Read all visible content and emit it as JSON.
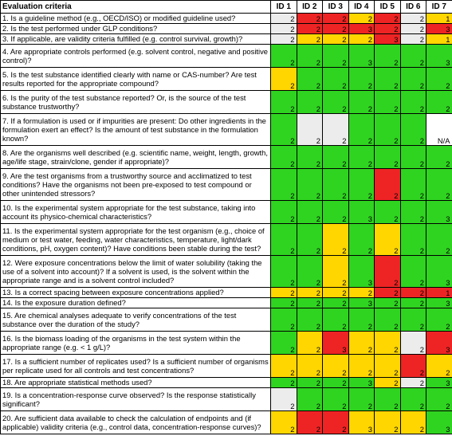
{
  "header": {
    "criteria": "Evaluation criteria",
    "ids": [
      "ID 1",
      "ID 2",
      "ID 3",
      "ID 4",
      "ID 5",
      "ID 6",
      "ID 7"
    ]
  },
  "colors": {
    "green": "#2fd420",
    "yellow": "#ffd600",
    "red": "#ee2424",
    "grey": "#ececec"
  },
  "rows": [
    {
      "text": "1. Is a guideline method (e.g., OECD/ISO) or modified guideline used?",
      "h": 13,
      "scores": [
        "2",
        "2",
        "2",
        "2",
        "2",
        "2",
        "1"
      ],
      "colors": [
        "n",
        "r",
        "r",
        "y",
        "r",
        "n",
        "y"
      ]
    },
    {
      "text": "2. Is the test performed under GLP conditions?",
      "h": 13,
      "scores": [
        "2",
        "2",
        "2",
        "3",
        "2",
        "2",
        "3"
      ],
      "colors": [
        "n",
        "r",
        "r",
        "r",
        "r",
        "n",
        "r"
      ]
    },
    {
      "text": "3. If applicable, are validity criteria fulfilled (e.g. control survival, growth)?",
      "h": 13,
      "scores": [
        "2",
        "2",
        "2",
        "2",
        "3",
        "2",
        "1"
      ],
      "colors": [
        "n",
        "y",
        "y",
        "y",
        "r",
        "n",
        "y"
      ]
    },
    {
      "text": "4. Are appropriate controls performed (e.g. solvent control, negative and positive control)?",
      "h": 29,
      "scores": [
        "2",
        "2",
        "2",
        "3",
        "2",
        "2",
        "3"
      ],
      "colors": [
        "g",
        "g",
        "g",
        "g",
        "g",
        "g",
        "g"
      ]
    },
    {
      "text": "5. Is the test substance identified clearly with name or CAS-number? Are test results reported for the appropriate compound?",
      "h": 29,
      "scores": [
        "2",
        "2",
        "2",
        "2",
        "2",
        "2",
        "2"
      ],
      "colors": [
        "y",
        "g",
        "g",
        "g",
        "g",
        "g",
        "g"
      ]
    },
    {
      "text": "6. Is the purity of the test substance reported? Or, is the source of the test substance trustworthy?",
      "h": 29,
      "scores": [
        "2",
        "2",
        "2",
        "2",
        "2",
        "2",
        "2"
      ],
      "colors": [
        "g",
        "g",
        "g",
        "g",
        "g",
        "g",
        "g"
      ]
    },
    {
      "text": "7. If a formulation is used or if impurities are present: Do other ingredients in the formulation exert an effect? Is the amount of test substance in the formulation known?",
      "h": 40,
      "scores": [
        "2",
        "2",
        "2",
        "2",
        "2",
        "2",
        "N/A"
      ],
      "colors": [
        "g",
        "n",
        "n",
        "g",
        "g",
        "g",
        "w"
      ]
    },
    {
      "text": "8. Are the organisms well described (e.g. scientific name, weight, length, growth, age/life stage, strain/clone, gender if appropriate)?",
      "h": 29,
      "scores": [
        "2",
        "2",
        "2",
        "2",
        "2",
        "2",
        "2"
      ],
      "colors": [
        "g",
        "g",
        "g",
        "g",
        "g",
        "g",
        "g"
      ]
    },
    {
      "text": "9. Are the test organisms from a trustworthy source and acclimatized to test conditions? Have the organisms not been pre-exposed to test compound or other unintended stressors?",
      "h": 40,
      "scores": [
        "2",
        "2",
        "2",
        "2",
        "2",
        "2",
        "2"
      ],
      "colors": [
        "g",
        "g",
        "g",
        "g",
        "r",
        "g",
        "g"
      ]
    },
    {
      "text": "10. Is the experimental system appropriate for the test substance, taking into account its physico-chemical characteristics?",
      "h": 29,
      "scores": [
        "2",
        "2",
        "2",
        "3",
        "2",
        "2",
        "3"
      ],
      "colors": [
        "g",
        "g",
        "g",
        "g",
        "g",
        "g",
        "g"
      ]
    },
    {
      "text": "11. Is the experimental system appropriate for the test organism (e.g., choice of medium or test water, feeding, water characteristics, temperature, light/dark conditions, pH, oxygen content)? Have conditions been stable during the test?",
      "h": 40,
      "scores": [
        "2",
        "2",
        "2",
        "2",
        "2",
        "2",
        "2"
      ],
      "colors": [
        "g",
        "g",
        "y",
        "g",
        "y",
        "g",
        "g"
      ]
    },
    {
      "text": "12. Were exposure concentrations below the limit of water solubility (taking the use of a solvent into account)? If a solvent is used, is the solvent within the appropriate range and is a solvent control included?",
      "h": 40,
      "scores": [
        "2",
        "2",
        "2",
        "3",
        "2",
        "2",
        "3"
      ],
      "colors": [
        "g",
        "g",
        "y",
        "g",
        "r",
        "g",
        "g"
      ]
    },
    {
      "text": "13. Is a correct spacing between exposure concentrations applied?",
      "h": 13,
      "scores": [
        "2",
        "2",
        "2",
        "2",
        "2",
        "2",
        "1"
      ],
      "colors": [
        "y",
        "y",
        "y",
        "y",
        "r",
        "r",
        "r"
      ]
    },
    {
      "text": "14. Is the exposure duration defined?",
      "h": 13,
      "scores": [
        "2",
        "2",
        "2",
        "3",
        "2",
        "2",
        "3"
      ],
      "colors": [
        "g",
        "g",
        "g",
        "g",
        "g",
        "g",
        "g"
      ]
    },
    {
      "text": "15. Are chemical analyses adequate to verify concentrations of the test substance over the duration of the study?",
      "h": 29,
      "scores": [
        "2",
        "2",
        "2",
        "2",
        "2",
        "2",
        "2"
      ],
      "colors": [
        "g",
        "g",
        "g",
        "g",
        "g",
        "g",
        "g"
      ]
    },
    {
      "text": "16. Is the biomass loading of the organisms in the test system within the appropriate range (e.g. < 1 g/L)?",
      "h": 29,
      "scores": [
        "2",
        "2",
        "3",
        "2",
        "2",
        "2",
        "3"
      ],
      "colors": [
        "g",
        "y",
        "r",
        "y",
        "y",
        "n",
        "r"
      ]
    },
    {
      "text": "17. Is a sufficient number of replicates used? Is a sufficient number of organisms per replicate used for all controls and test concentrations?",
      "h": 29,
      "scores": [
        "2",
        "2",
        "2",
        "2",
        "2",
        "2",
        "2"
      ],
      "colors": [
        "y",
        "y",
        "y",
        "y",
        "y",
        "r",
        "y"
      ]
    },
    {
      "text": "18. Are appropriate statistical methods used?",
      "h": 13,
      "scores": [
        "2",
        "2",
        "2",
        "3",
        "2",
        "2",
        "3"
      ],
      "colors": [
        "g",
        "g",
        "g",
        "g",
        "y",
        "n",
        "g"
      ]
    },
    {
      "text": "19. Is a concentration-response curve observed? Is the response statistically significant?",
      "h": 29,
      "scores": [
        "2",
        "2",
        "2",
        "2",
        "2",
        "2",
        "2"
      ],
      "colors": [
        "n",
        "g",
        "g",
        "g",
        "g",
        "g",
        "g"
      ]
    },
    {
      "text": "20. Are sufficient data available to check the calculation of endpoints and (if applicable)  validity criteria (e.g., control data, concentration-response curves)?",
      "h": 29,
      "scores": [
        "2",
        "2",
        "2",
        "3",
        "2",
        "2",
        "3"
      ],
      "colors": [
        "y",
        "r",
        "r",
        "y",
        "y",
        "y",
        "g"
      ]
    }
  ]
}
